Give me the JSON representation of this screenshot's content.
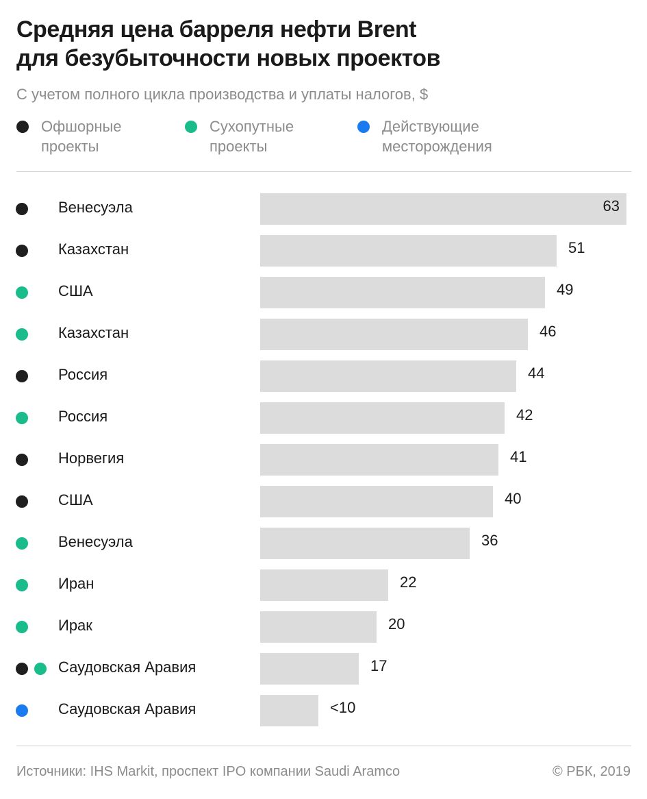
{
  "title_lines": [
    "Средняя цена барреля нефти Brent",
    "для безубыточности новых проектов"
  ],
  "subtitle": "С учетом полного цикла производства и уплаты налогов, $",
  "colors": {
    "offshore": "#1f1f1f",
    "onshore": "#1abc8c",
    "existing": "#1a7bf0",
    "bar": "#dcdcdc"
  },
  "legend": [
    {
      "key": "offshore",
      "label": "Офшорные проекты"
    },
    {
      "key": "onshore",
      "label": "Сухопутные проекты"
    },
    {
      "key": "existing",
      "label": "Действующие месторождения"
    }
  ],
  "chart_data": {
    "type": "bar",
    "orientation": "horizontal",
    "categories": [
      "Венесуэла",
      "Казахстан",
      "США",
      "Казахстан",
      "Россия",
      "Россия",
      "Норвегия",
      "США",
      "Венесуэла",
      "Иран",
      "Ирак",
      "Саудовская Аравия",
      "Саудовская Аравия"
    ],
    "values": [
      63,
      51,
      49,
      46,
      44,
      42,
      41,
      40,
      36,
      22,
      20,
      17,
      10
    ],
    "value_labels": [
      "63",
      "51",
      "49",
      "46",
      "44",
      "42",
      "41",
      "40",
      "36",
      "22",
      "20",
      "17",
      "<10"
    ],
    "groups": [
      [
        "offshore"
      ],
      [
        "offshore"
      ],
      [
        "onshore"
      ],
      [
        "onshore"
      ],
      [
        "offshore"
      ],
      [
        "onshore"
      ],
      [
        "offshore"
      ],
      [
        "offshore"
      ],
      [
        "onshore"
      ],
      [
        "onshore"
      ],
      [
        "onshore"
      ],
      [
        "offshore",
        "onshore"
      ],
      [
        "existing"
      ]
    ],
    "xlim": [
      0,
      63
    ],
    "grid": false
  },
  "footer": {
    "sources": "Источники: IHS Markit, проспект IPO компании Saudi Aramco",
    "copyright": "© РБК, 2019"
  }
}
